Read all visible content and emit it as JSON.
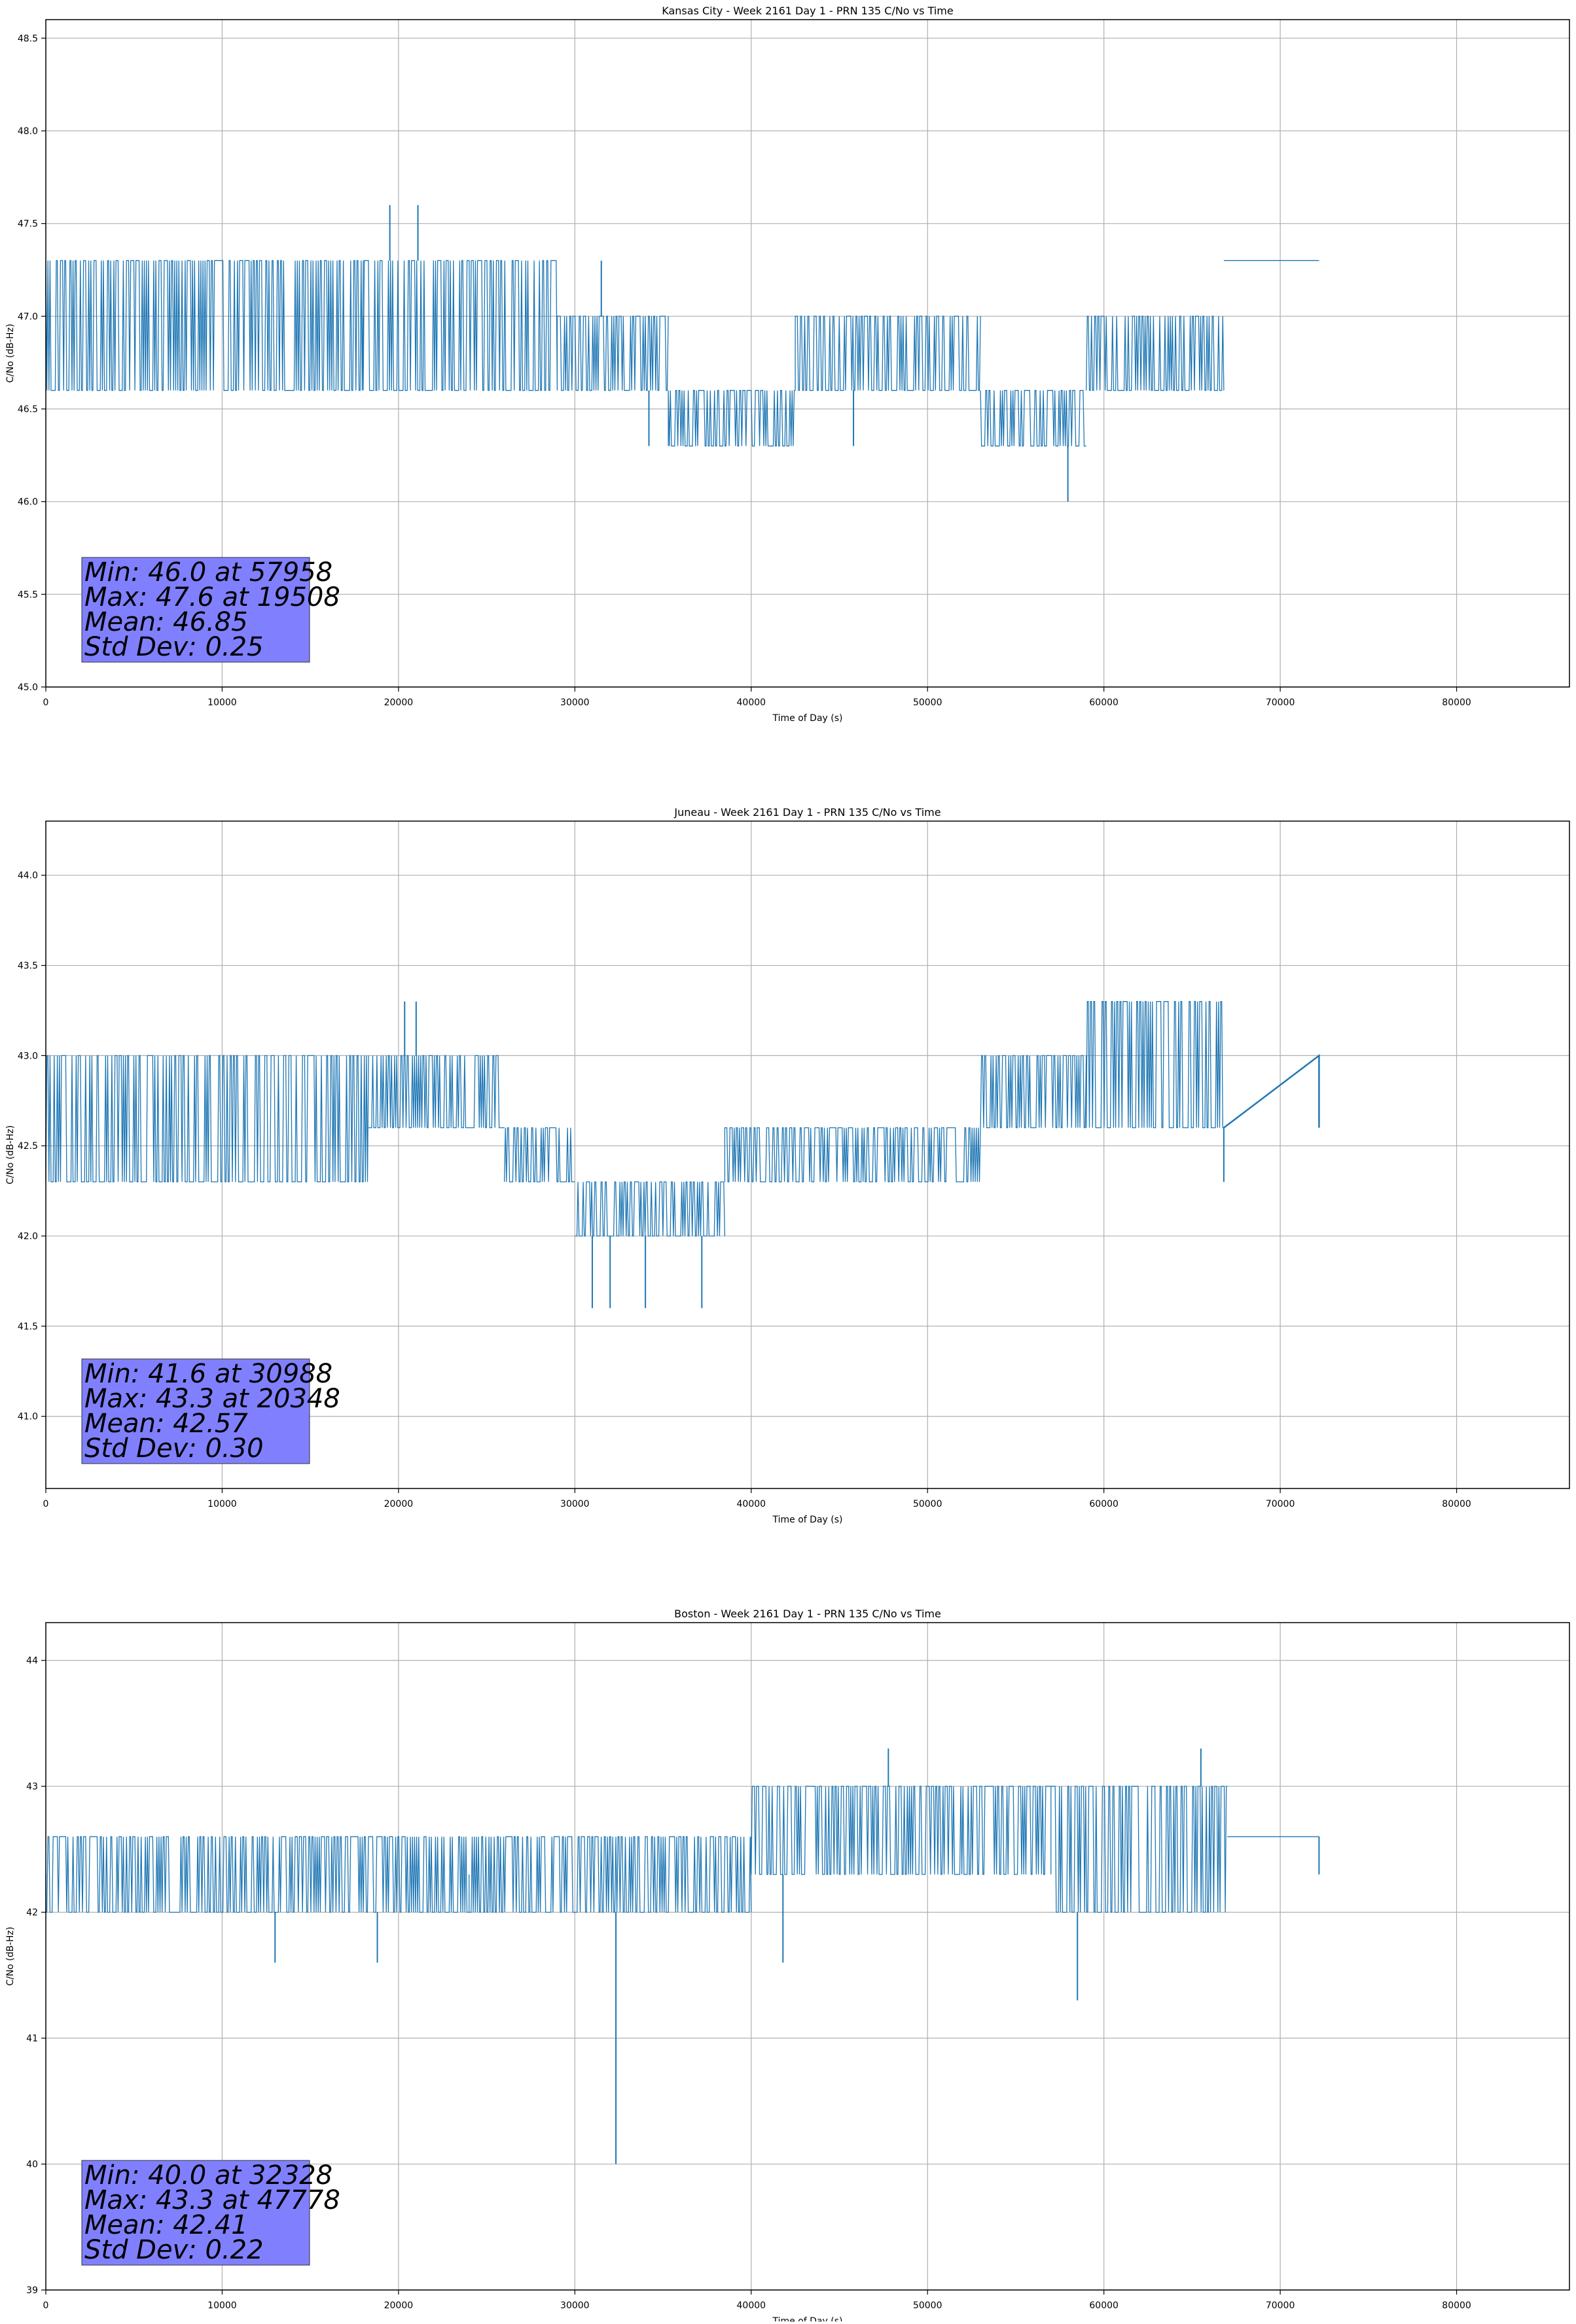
{
  "series_color": "#1f77b4",
  "stats_box_color": "#8080ff",
  "chart_data": [
    {
      "type": "line",
      "title": "Kansas City - Week 2161 Day 1 - PRN 135 C/No vs Time",
      "xlabel": "Time of Day (s)",
      "ylabel": "C/No (dB-Hz)",
      "xlim": [
        0,
        86400
      ],
      "ylim": [
        45.0,
        48.6
      ],
      "xticks": [
        0,
        10000,
        20000,
        30000,
        40000,
        50000,
        60000,
        70000,
        80000
      ],
      "xtick_labels": [
        "0",
        "10000",
        "20000",
        "30000",
        "40000",
        "50000",
        "60000",
        "70000",
        "80000"
      ],
      "yticks": [
        45.0,
        45.5,
        46.0,
        46.5,
        47.0,
        47.5,
        48.0,
        48.5
      ],
      "ytick_labels": [
        "45.0",
        "45.5",
        "46.0",
        "46.5",
        "47.0",
        "47.5",
        "48.0",
        "48.5"
      ],
      "grid": true,
      "segments": [
        {
          "x0": 0,
          "x1": 18000,
          "lo": 46.6,
          "hi": 47.3,
          "base": 47.0
        },
        {
          "x0": 18000,
          "x1": 29000,
          "lo": 46.6,
          "hi": 47.3,
          "base": 47.0
        },
        {
          "x0": 29000,
          "x1": 35300,
          "lo": 46.6,
          "hi": 47.0,
          "base": 46.6
        },
        {
          "x0": 35300,
          "x1": 42500,
          "lo": 46.3,
          "hi": 46.6,
          "base": 46.3
        },
        {
          "x0": 42500,
          "x1": 53000,
          "lo": 46.6,
          "hi": 47.0,
          "base": 46.6
        },
        {
          "x0": 53000,
          "x1": 59000,
          "lo": 46.3,
          "hi": 46.6,
          "base": 46.6
        },
        {
          "x0": 59000,
          "x1": 66800,
          "lo": 46.6,
          "hi": 47.0,
          "base": 46.6
        },
        {
          "x0": 66800,
          "x1": 72200,
          "lo": 47.3,
          "hi": 47.3,
          "base": 47.3
        }
      ],
      "spikes": [
        {
          "x": 19508,
          "y": 47.6
        },
        {
          "x": 21100,
          "y": 47.6
        },
        {
          "x": 31500,
          "y": 47.3
        },
        {
          "x": 34200,
          "y": 46.3
        },
        {
          "x": 45800,
          "y": 46.3
        },
        {
          "x": 57958,
          "y": 46.0
        }
      ],
      "stats": {
        "min": "Min: 46.0 at 57958",
        "max": "Max: 47.6 at 19508",
        "mean": "Mean: 46.85",
        "std": "Std Dev: 0.25"
      }
    },
    {
      "type": "line",
      "title": "Juneau - Week 2161 Day 1 - PRN 135 C/No vs Time",
      "xlabel": "Time of Day (s)",
      "ylabel": "C/No (dB-Hz)",
      "xlim": [
        0,
        86400
      ],
      "ylim": [
        40.6,
        44.3
      ],
      "xticks": [
        0,
        10000,
        20000,
        30000,
        40000,
        50000,
        60000,
        70000,
        80000
      ],
      "xtick_labels": [
        "0",
        "10000",
        "20000",
        "30000",
        "40000",
        "50000",
        "60000",
        "70000",
        "80000"
      ],
      "yticks": [
        41.0,
        41.5,
        42.0,
        42.5,
        43.0,
        43.5,
        44.0
      ],
      "ytick_labels": [
        "41.0",
        "41.5",
        "42.0",
        "42.5",
        "43.0",
        "43.5",
        "44.0"
      ],
      "grid": true,
      "segments": [
        {
          "x0": 0,
          "x1": 18300,
          "lo": 42.3,
          "hi": 43.0,
          "base": 42.6
        },
        {
          "x0": 18300,
          "x1": 26000,
          "lo": 42.6,
          "hi": 43.0,
          "base": 42.6
        },
        {
          "x0": 26000,
          "x1": 30000,
          "lo": 42.3,
          "hi": 42.6,
          "base": 42.3
        },
        {
          "x0": 30000,
          "x1": 38500,
          "lo": 42.0,
          "hi": 42.3,
          "base": 42.0
        },
        {
          "x0": 38500,
          "x1": 53000,
          "lo": 42.3,
          "hi": 42.6,
          "base": 42.3
        },
        {
          "x0": 53000,
          "x1": 59000,
          "lo": 42.6,
          "hi": 43.0,
          "base": 42.6
        },
        {
          "x0": 59000,
          "x1": 66800,
          "lo": 42.6,
          "hi": 43.3,
          "base": 43.0
        }
      ],
      "trend": [
        [
          66800,
          42.6
        ],
        [
          72200,
          43.0
        ],
        [
          72200,
          42.6
        ]
      ],
      "spikes": [
        {
          "x": 20348,
          "y": 43.3
        },
        {
          "x": 21000,
          "y": 43.3
        },
        {
          "x": 30988,
          "y": 41.6
        },
        {
          "x": 32000,
          "y": 41.6
        },
        {
          "x": 34000,
          "y": 41.6
        },
        {
          "x": 37200,
          "y": 41.6
        },
        {
          "x": 66800,
          "y": 42.3
        }
      ],
      "stats": {
        "min": "Min: 41.6 at 30988",
        "max": "Max: 43.3 at 20348",
        "mean": "Mean: 42.57",
        "std": "Std Dev: 0.30"
      }
    },
    {
      "type": "line",
      "title": "Boston - Week 2161 Day 1 - PRN 135 C/No vs Time",
      "xlabel": "Time of Day (s)",
      "ylabel": "C/No (dB-Hz)",
      "xlim": [
        0,
        86400
      ],
      "ylim": [
        39.0,
        44.3
      ],
      "xticks": [
        0,
        10000,
        20000,
        30000,
        40000,
        50000,
        60000,
        70000,
        80000
      ],
      "xtick_labels": [
        "0",
        "10000",
        "20000",
        "30000",
        "40000",
        "50000",
        "60000",
        "70000",
        "80000"
      ],
      "yticks": [
        39,
        40,
        41,
        42,
        43,
        44
      ],
      "ytick_labels": [
        "39",
        "40",
        "41",
        "42",
        "43",
        "44"
      ],
      "grid": true,
      "segments": [
        {
          "x0": 0,
          "x1": 24000,
          "lo": 42.0,
          "hi": 42.6,
          "base": 42.3
        },
        {
          "x0": 24000,
          "x1": 40000,
          "lo": 42.0,
          "hi": 42.6,
          "base": 42.3
        },
        {
          "x0": 40000,
          "x1": 57000,
          "lo": 42.3,
          "hi": 43.0,
          "base": 42.6
        },
        {
          "x0": 57000,
          "x1": 67000,
          "lo": 42.0,
          "hi": 43.0,
          "base": 42.3
        },
        {
          "x0": 67000,
          "x1": 72200,
          "lo": 42.6,
          "hi": 42.6,
          "base": 42.6
        }
      ],
      "spikes": [
        {
          "x": 13000,
          "y": 41.6
        },
        {
          "x": 18800,
          "y": 41.6
        },
        {
          "x": 32328,
          "y": 40.0
        },
        {
          "x": 41800,
          "y": 41.6
        },
        {
          "x": 47778,
          "y": 43.3
        },
        {
          "x": 58500,
          "y": 41.3
        },
        {
          "x": 65500,
          "y": 43.3
        },
        {
          "x": 72200,
          "y": 42.3
        }
      ],
      "stats": {
        "min": "Min: 40.0 at 32328",
        "max": "Max: 43.3 at 47778",
        "mean": "Mean: 42.41",
        "std": "Std Dev: 0.22"
      }
    }
  ]
}
